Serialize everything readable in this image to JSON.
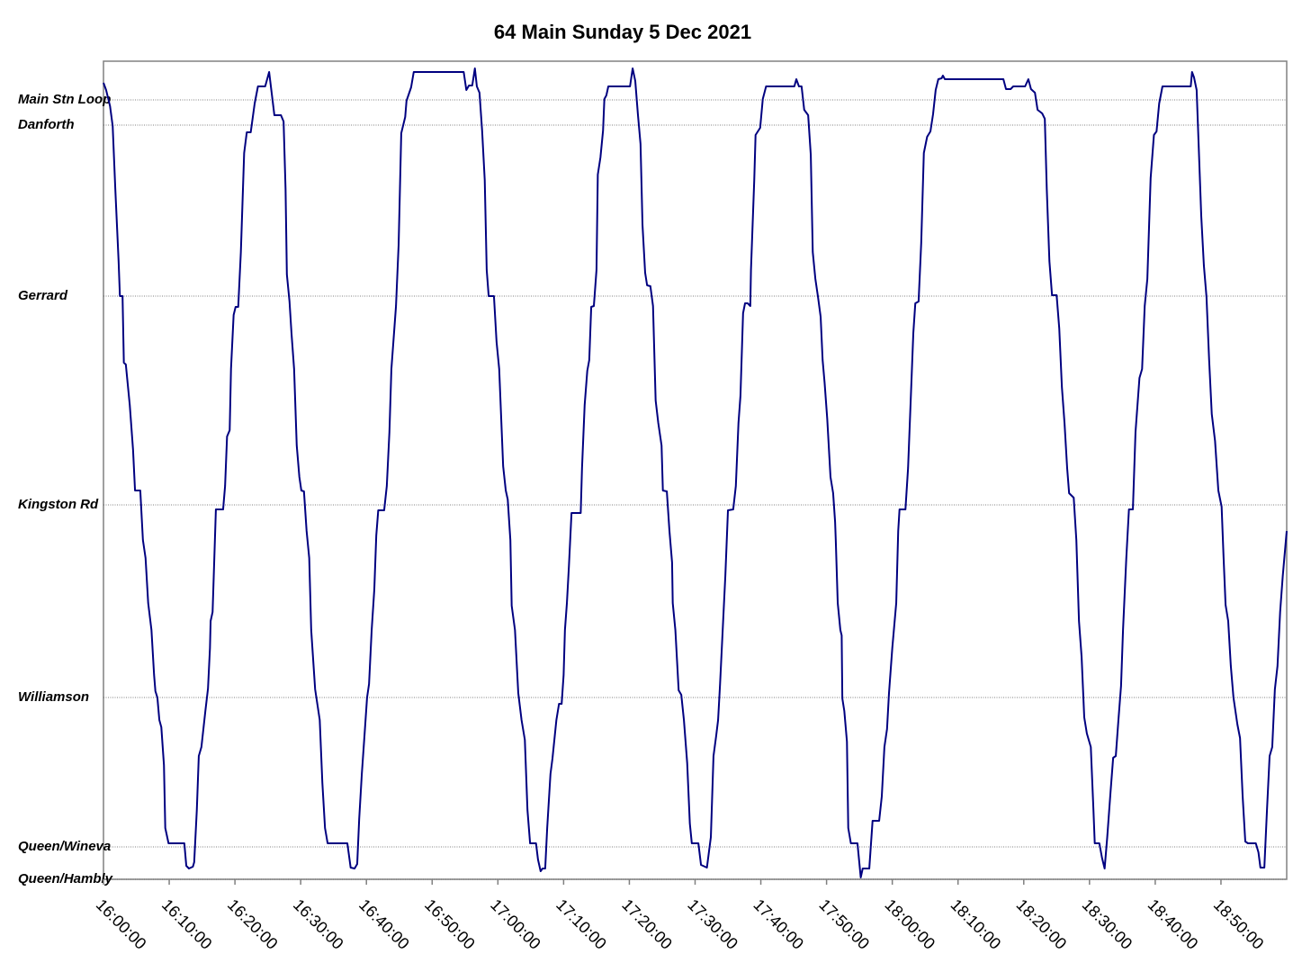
{
  "chart_data": {
    "type": "line",
    "title": "64 Main Sunday 5 Dec 2021",
    "color": "#000080",
    "grid": true,
    "xlim": [
      0,
      180
    ],
    "xticks": [
      {
        "value": 0,
        "label": "16:00:00"
      },
      {
        "value": 10,
        "label": "16:10:00"
      },
      {
        "value": 20,
        "label": "16:20:00"
      },
      {
        "value": 30,
        "label": "16:30:00"
      },
      {
        "value": 40,
        "label": "16:40:00"
      },
      {
        "value": 50,
        "label": "16:50:00"
      },
      {
        "value": 60,
        "label": "17:00:00"
      },
      {
        "value": 70,
        "label": "17:10:00"
      },
      {
        "value": 80,
        "label": "17:20:00"
      },
      {
        "value": 90,
        "label": "17:30:00"
      },
      {
        "value": 100,
        "label": "17:40:00"
      },
      {
        "value": 110,
        "label": "17:50:00"
      },
      {
        "value": 120,
        "label": "18:00:00"
      },
      {
        "value": 130,
        "label": "18:10:00"
      },
      {
        "value": 140,
        "label": "18:20:00"
      },
      {
        "value": 150,
        "label": "18:30:00"
      },
      {
        "value": 160,
        "label": "18:40:00"
      },
      {
        "value": 170,
        "label": "18:50:00"
      }
    ],
    "ylim": [
      0,
      909
    ],
    "yticks": [
      {
        "value": 0,
        "label": "Queen/Hambly"
      },
      {
        "value": 36,
        "label": "Queen/Wineva"
      },
      {
        "value": 202,
        "label": "Williamson"
      },
      {
        "value": 416,
        "label": "Kingston Rd"
      },
      {
        "value": 648,
        "label": "Gerrard"
      },
      {
        "value": 838,
        "label": "Danforth"
      },
      {
        "value": 866,
        "label": "Main Stn Loop"
      }
    ],
    "x": [
      0.0,
      0.4,
      1.0,
      1.4,
      1.8,
      2.3,
      2.5,
      2.9,
      3.1,
      3.4,
      4.0,
      4.5,
      4.8,
      5.6,
      6.0,
      6.4,
      6.8,
      7.3,
      7.7,
      7.9,
      8.2,
      8.5,
      8.8,
      9.2,
      9.4,
      9.9,
      12.3,
      12.6,
      13.0,
      13.6,
      13.8,
      14.2,
      14.5,
      14.9,
      15.5,
      15.9,
      16.2,
      16.3,
      16.6,
      17.1,
      18.2,
      18.5,
      18.8,
      19.2,
      19.4,
      19.8,
      20.1,
      20.5,
      20.9,
      21.4,
      21.8,
      22.4,
      23.0,
      23.5,
      24.6,
      25.2,
      26.0,
      27.0,
      27.4,
      27.7,
      27.9,
      28.3,
      28.6,
      29.0,
      29.4,
      29.8,
      30.1,
      30.5,
      30.9,
      31.3,
      31.6,
      32.2,
      32.9,
      33.3,
      33.7,
      34.1,
      37.1,
      37.6,
      38.2,
      38.6,
      38.9,
      39.3,
      39.7,
      40.1,
      40.4,
      40.8,
      41.2,
      41.5,
      41.8,
      42.7,
      43.1,
      43.5,
      43.8,
      44.1,
      44.5,
      44.9,
      45.3,
      45.9,
      46.1,
      46.8,
      47.2,
      54.8,
      55.2,
      55.6,
      56.1,
      56.5,
      56.8,
      57.2,
      57.6,
      58.0,
      58.3,
      58.6,
      59.4,
      59.8,
      60.2,
      60.8,
      61.2,
      61.5,
      61.9,
      62.1,
      62.6,
      63.1,
      63.6,
      64.1,
      64.5,
      64.9,
      65.8,
      66.1,
      66.5,
      66.8,
      67.2,
      67.5,
      68.0,
      68.3,
      68.9,
      69.3,
      69.7,
      70.0,
      70.2,
      70.5,
      70.8,
      71.2,
      72.6,
      72.8,
      73.2,
      73.6,
      73.9,
      74.2,
      74.6,
      75.0,
      75.2,
      75.6,
      76.0,
      76.2,
      76.5,
      76.8,
      80.1,
      80.5,
      80.9,
      81.3,
      81.7,
      82.0,
      82.4,
      82.7,
      83.2,
      83.6,
      84.0,
      84.4,
      84.9,
      85.1,
      85.7,
      86.1,
      86.5,
      86.6,
      87.0,
      87.5,
      87.9,
      88.3,
      88.8,
      89.2,
      89.5,
      90.5,
      90.9,
      91.8,
      92.4,
      92.8,
      93.2,
      93.5,
      93.8,
      94.2,
      94.6,
      95.0,
      95.8,
      96.2,
      96.6,
      96.9,
      97.3,
      97.6,
      98.0,
      98.4,
      98.5,
      99.0,
      99.2,
      99.9,
      100.3,
      100.8,
      105.1,
      105.4,
      105.8,
      106.2,
      106.6,
      107.2,
      107.6,
      107.9,
      108.3,
      108.7,
      109.1,
      109.4,
      109.7,
      110.1,
      110.6,
      111.0,
      111.3,
      111.4,
      111.7,
      112.1,
      112.3,
      112.4,
      112.7,
      113.1,
      113.3,
      113.7,
      114.7,
      115.2,
      115.5,
      116.5,
      117.0,
      118.0,
      118.4,
      118.8,
      119.2,
      119.5,
      120.0,
      120.6,
      120.9,
      121.1,
      122.0,
      122.4,
      122.8,
      123.2,
      123.5,
      124.0,
      124.4,
      124.8,
      125.3,
      125.8,
      126.2,
      126.6,
      127.0,
      127.5,
      127.7,
      128.0,
      136.9,
      137.3,
      138.0,
      138.4,
      140.2,
      140.7,
      141.1,
      141.7,
      142.1,
      142.8,
      143.2,
      143.5,
      143.9,
      144.3,
      145.0,
      145.4,
      145.8,
      146.2,
      146.6,
      146.9,
      147.6,
      148.0,
      148.4,
      148.8,
      149.2,
      149.6,
      150.2,
      150.6,
      150.8,
      151.5,
      151.9,
      152.3,
      152.7,
      153.2,
      153.6,
      154.0,
      154.4,
      154.8,
      155.1,
      155.6,
      156.0,
      156.6,
      157.0,
      157.6,
      158.0,
      158.4,
      158.8,
      159.3,
      159.8,
      160.2,
      160.6,
      161.1,
      165.4,
      165.6,
      165.9,
      166.3,
      166.6,
      167.0,
      167.4,
      167.8,
      168.2,
      168.6,
      169.1,
      169.6,
      170.1,
      170.4,
      170.7,
      171.1,
      171.5,
      171.9,
      172.5,
      172.9,
      173.3,
      173.7,
      174.1,
      175.3,
      175.7,
      176.0,
      176.6,
      177.0,
      177.4,
      177.8,
      178.2,
      178.6,
      179.0,
      179.4,
      180.0
    ],
    "values": [
      885,
      877,
      859,
      837,
      767,
      687,
      648,
      648,
      574,
      572,
      527,
      477,
      432,
      432,
      377,
      357,
      307,
      277,
      227,
      209,
      202,
      177,
      169,
      127,
      57,
      40,
      40,
      15,
      12,
      14,
      19,
      77,
      137,
      147,
      187,
      212,
      257,
      287,
      297,
      411,
      411,
      437,
      492,
      499,
      567,
      627,
      636,
      636,
      697,
      807,
      830,
      830,
      862,
      881,
      881,
      897,
      849,
      849,
      842,
      767,
      672,
      642,
      607,
      567,
      482,
      447,
      432,
      431,
      387,
      357,
      277,
      211,
      177,
      107,
      57,
      40,
      40,
      13,
      12,
      17,
      67,
      117,
      159,
      202,
      217,
      277,
      322,
      382,
      410,
      410,
      437,
      497,
      567,
      597,
      637,
      705,
      829,
      847,
      865,
      880,
      897,
      897,
      877,
      882,
      882,
      901,
      881,
      874,
      832,
      777,
      677,
      648,
      648,
      597,
      567,
      459,
      432,
      422,
      377,
      304,
      277,
      207,
      177,
      155,
      77,
      40,
      40,
      22,
      9,
      12,
      12,
      57,
      117,
      134,
      177,
      195,
      195,
      227,
      277,
      307,
      347,
      407,
      407,
      457,
      527,
      565,
      577,
      636,
      637,
      677,
      783,
      802,
      832,
      867,
      871,
      881,
      881,
      901,
      887,
      850,
      817,
      727,
      674,
      660,
      659,
      637,
      532,
      507,
      482,
      432,
      431,
      387,
      352,
      307,
      277,
      210,
      205,
      177,
      129,
      62,
      40,
      40,
      16,
      13,
      47,
      137,
      159,
      177,
      217,
      277,
      337,
      410,
      411,
      437,
      507,
      537,
      629,
      640,
      640,
      637,
      677,
      777,
      827,
      835,
      867,
      881,
      881,
      889,
      881,
      881,
      855,
      849,
      805,
      697,
      667,
      647,
      625,
      577,
      552,
      512,
      447,
      429,
      397,
      377,
      307,
      277,
      271,
      201,
      187,
      153,
      57,
      40,
      40,
      2,
      12,
      12,
      65,
      65,
      92,
      147,
      167,
      207,
      257,
      307,
      387,
      411,
      411,
      457,
      532,
      607,
      640,
      642,
      707,
      807,
      825,
      831,
      850,
      877,
      889,
      890,
      893,
      889,
      889,
      878,
      878,
      881,
      881,
      889,
      878,
      874,
      855,
      851,
      845,
      767,
      687,
      649,
      649,
      612,
      547,
      507,
      457,
      429,
      424,
      377,
      287,
      247,
      180,
      162,
      147,
      77,
      40,
      40,
      24,
      12,
      47,
      97,
      135,
      137,
      177,
      215,
      277,
      357,
      411,
      411,
      497,
      557,
      567,
      637,
      667,
      779,
      827,
      831,
      862,
      881,
      881,
      897,
      891,
      877,
      817,
      737,
      682,
      647,
      577,
      517,
      487,
      432,
      414,
      357,
      305,
      287,
      237,
      202,
      172,
      157,
      92,
      42,
      40,
      40,
      30,
      13,
      13,
      77,
      137,
      147,
      211,
      237,
      297,
      337,
      387
    ]
  }
}
